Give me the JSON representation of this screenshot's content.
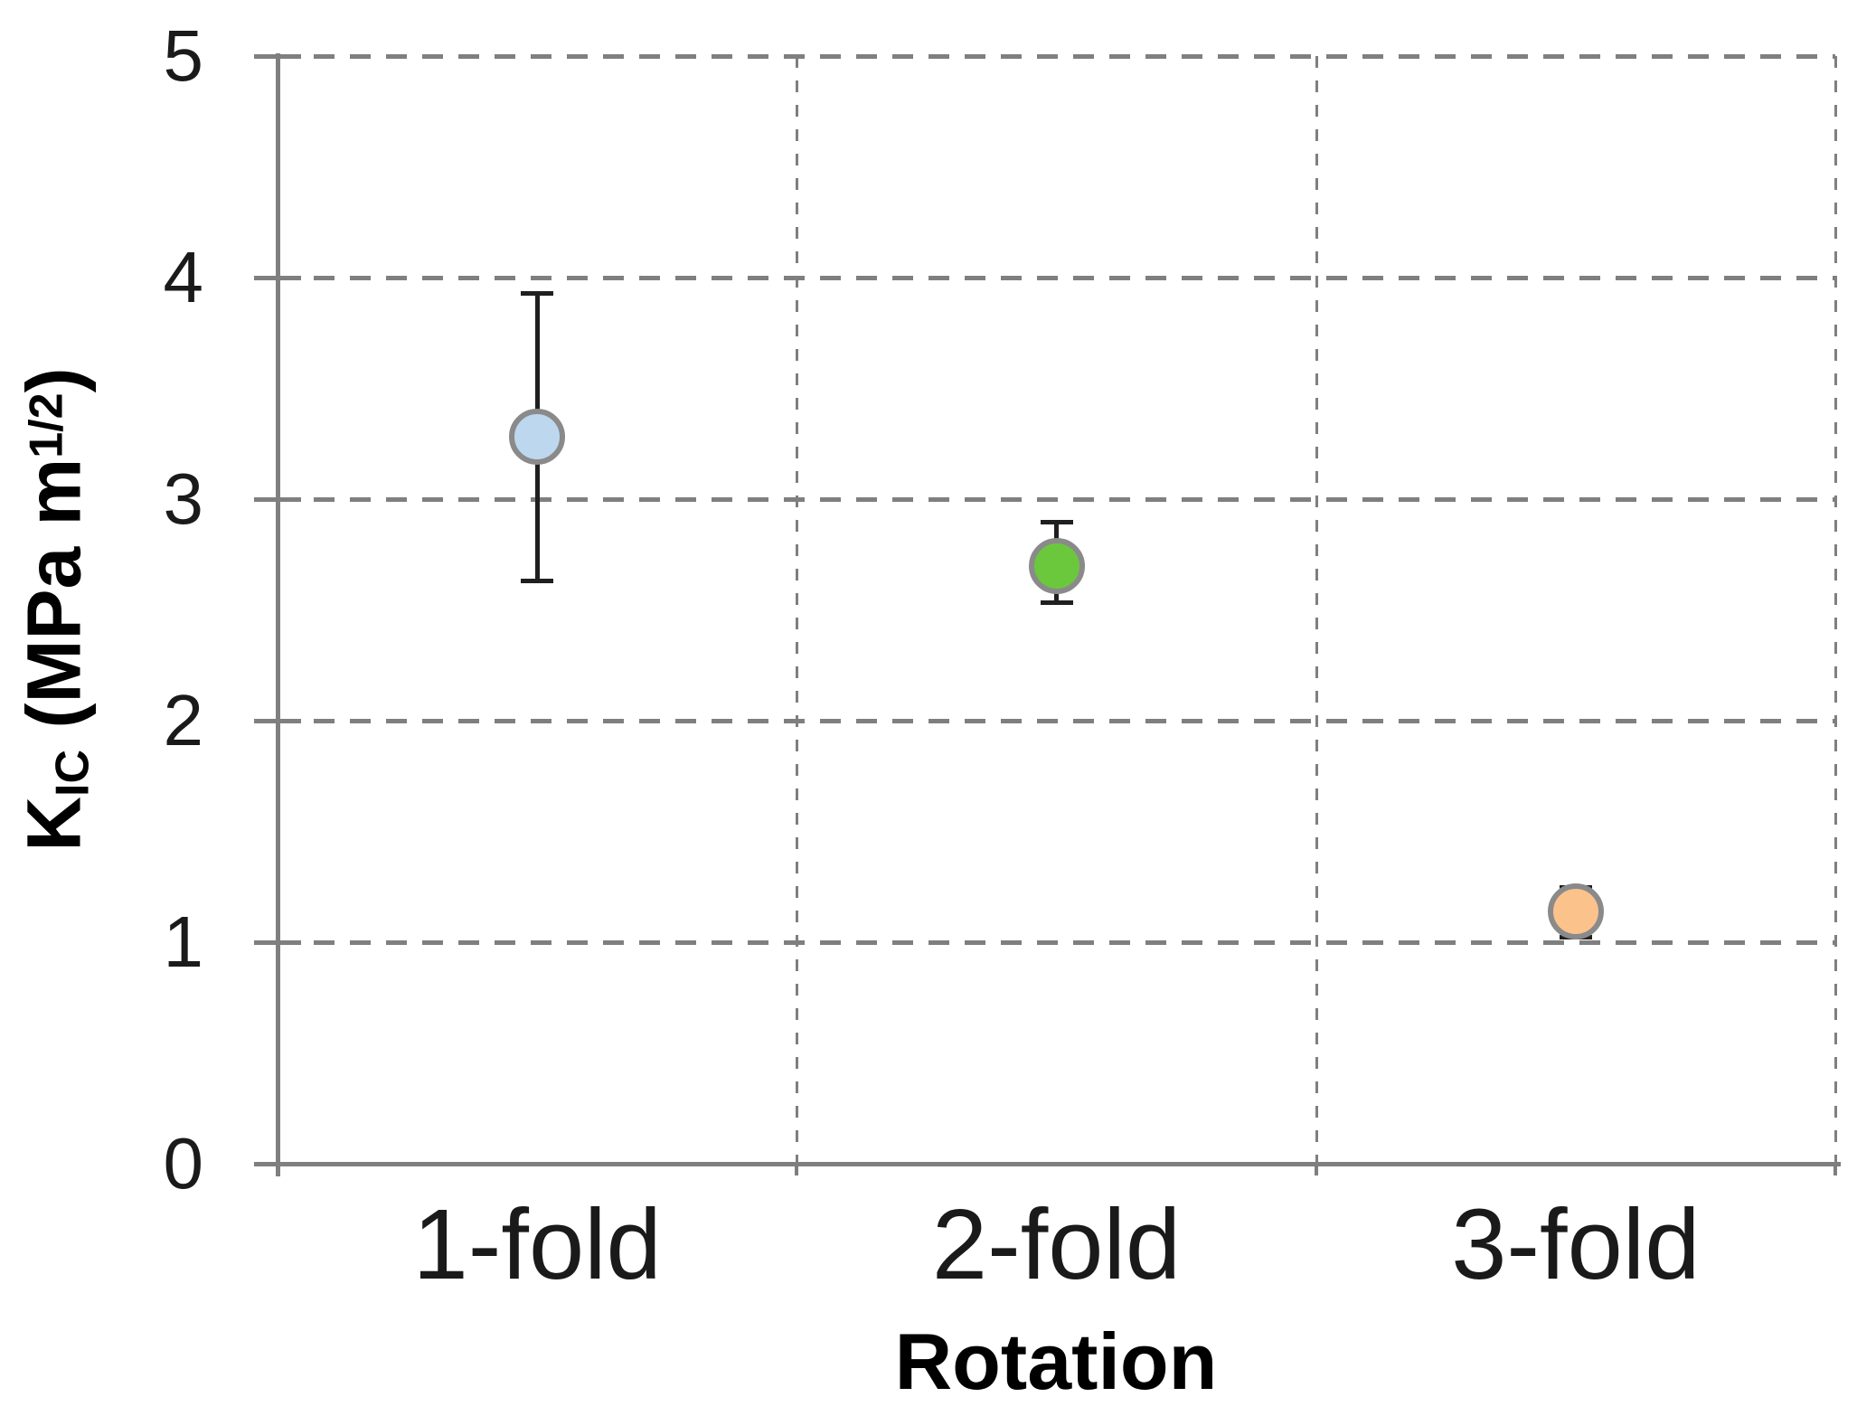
{
  "chart_data": {
    "type": "scatter",
    "title": "",
    "xlabel": "Rotation",
    "ylabel": "K_IC (MPa m^1/2)",
    "ylabel_parts": {
      "base": "K",
      "sub": "IC",
      "mid": " (MPa m",
      "sup": "1/2",
      "end": ")"
    },
    "categories": [
      "1-fold",
      "2-fold",
      "3-fold"
    ],
    "ylim": [
      0,
      5
    ],
    "yticks": [
      "0",
      "1",
      "2",
      "3",
      "4",
      "5"
    ],
    "grid": "dashed, horizontal at each y tick and vertical at category boundaries",
    "legend_position": "none",
    "series": [
      {
        "name": "KIC",
        "points": [
          {
            "category": "1-fold",
            "value": 3.28,
            "error_plus": 0.65,
            "error_minus": 0.65,
            "marker_color": "#BDD7EE"
          },
          {
            "category": "2-fold",
            "value": 2.7,
            "error_plus": 0.2,
            "error_minus": 0.17,
            "marker_color": "#6BC83D"
          },
          {
            "category": "3-fold",
            "value": 1.14,
            "error_plus": 0.11,
            "error_minus": 0.12,
            "marker_color": "#FBC28B"
          }
        ]
      }
    ],
    "colors": {
      "marker_border": "#8A8A8A",
      "error_bar": "#1F1F1F",
      "axis": "#7F7F7F",
      "grid": "#7F7F7F",
      "text": "#1A1A1A"
    }
  }
}
